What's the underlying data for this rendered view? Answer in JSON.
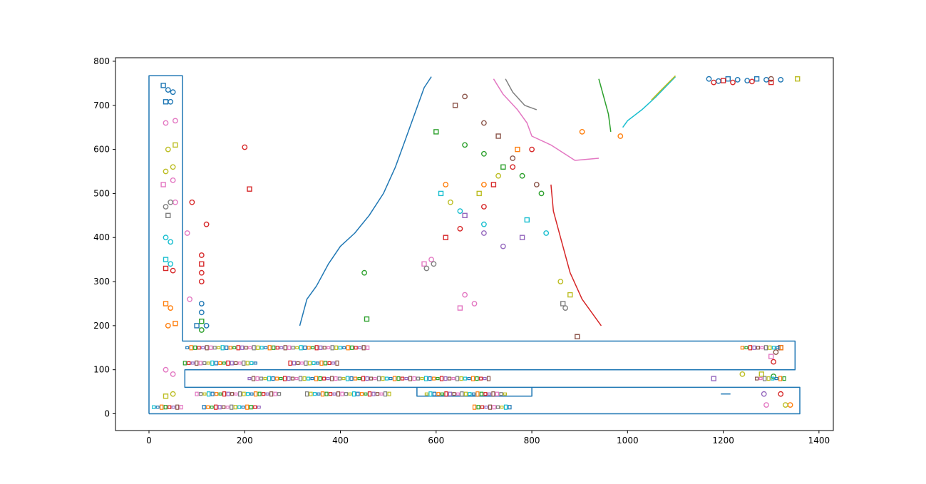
{
  "chart_data": {
    "type": "line",
    "title": "",
    "xlabel": "",
    "ylabel": "",
    "xlim": [
      -70,
      1430
    ],
    "ylim": [
      -38,
      808
    ],
    "grid": false,
    "x_ticks": [
      "0",
      "200",
      "400",
      "600",
      "800",
      "1000",
      "1200",
      "1400"
    ],
    "y_ticks": [
      "0",
      "100",
      "200",
      "300",
      "400",
      "500",
      "600",
      "700",
      "800"
    ],
    "x_tick_values": [
      0,
      200,
      400,
      600,
      800,
      1000,
      1200,
      1400
    ],
    "y_tick_values": [
      0,
      100,
      200,
      300,
      400,
      500,
      600,
      700,
      800
    ],
    "palette": [
      "#1f77b4",
      "#ff7f0e",
      "#2ca02c",
      "#d62728",
      "#9467bd",
      "#8c564b",
      "#e377c2",
      "#7f7f7f",
      "#bcbd22",
      "#17becf"
    ],
    "series": [
      {
        "color": "#1f77b4",
        "values": [
          [
            0,
            0
          ],
          [
            0,
            767
          ],
          [
            70,
            767
          ],
          [
            70,
            165
          ],
          [
            1350,
            165
          ],
          [
            1350,
            100
          ],
          [
            75,
            100
          ],
          [
            75,
            60
          ],
          [
            1360,
            60
          ],
          [
            1360,
            0
          ],
          [
            0,
            0
          ]
        ]
      },
      {
        "color": "#1f77b4",
        "values": [
          [
            560,
            60
          ],
          [
            560,
            40
          ],
          [
            800,
            40
          ],
          [
            800,
            60
          ]
        ]
      },
      {
        "color": "#1f77b4",
        "values": [
          [
            315,
            200
          ],
          [
            330,
            260
          ],
          [
            350,
            290
          ],
          [
            375,
            340
          ],
          [
            400,
            380
          ],
          [
            430,
            410
          ],
          [
            460,
            450
          ],
          [
            490,
            500
          ],
          [
            515,
            560
          ],
          [
            535,
            620
          ],
          [
            555,
            680
          ],
          [
            575,
            740
          ],
          [
            590,
            765
          ]
        ]
      },
      {
        "color": "#17becf",
        "values": [
          [
            1100,
            765
          ],
          [
            1060,
            720
          ],
          [
            1030,
            690
          ],
          [
            1000,
            665
          ],
          [
            990,
            650
          ]
        ]
      },
      {
        "color": "#bcbd22",
        "values": [
          [
            1100,
            767
          ],
          [
            1075,
            740
          ],
          [
            1050,
            712
          ]
        ]
      },
      {
        "color": "#e377c2",
        "values": [
          [
            720,
            760
          ],
          [
            740,
            725
          ],
          [
            770,
            690
          ],
          [
            790,
            660
          ],
          [
            800,
            630
          ],
          [
            840,
            610
          ],
          [
            890,
            575
          ],
          [
            940,
            580
          ]
        ]
      },
      {
        "color": "#7f7f7f",
        "values": [
          [
            745,
            760
          ],
          [
            760,
            730
          ],
          [
            785,
            700
          ],
          [
            810,
            690
          ]
        ]
      },
      {
        "color": "#d62728",
        "values": [
          [
            840,
            520
          ],
          [
            845,
            460
          ],
          [
            860,
            400
          ],
          [
            880,
            320
          ],
          [
            905,
            260
          ],
          [
            945,
            200
          ]
        ]
      },
      {
        "color": "#2ca02c",
        "values": [
          [
            940,
            760
          ],
          [
            950,
            720
          ],
          [
            960,
            680
          ],
          [
            965,
            640
          ]
        ]
      },
      {
        "color": "#1f77b4",
        "values": [
          [
            1195,
            45
          ],
          [
            1215,
            45
          ]
        ]
      }
    ],
    "markers": [
      {
        "color": "#1f77b4",
        "values": [
          [
            30,
            745
          ],
          [
            40,
            735
          ],
          [
            50,
            730
          ],
          [
            35,
            708
          ],
          [
            45,
            708
          ]
        ]
      },
      {
        "color": "#e377c2",
        "values": [
          [
            35,
            660
          ],
          [
            55,
            665
          ],
          [
            30,
            520
          ],
          [
            50,
            530
          ],
          [
            55,
            480
          ]
        ]
      },
      {
        "color": "#bcbd22",
        "values": [
          [
            40,
            600
          ],
          [
            55,
            610
          ],
          [
            35,
            550
          ],
          [
            50,
            560
          ]
        ]
      },
      {
        "color": "#7f7f7f",
        "values": [
          [
            35,
            470
          ],
          [
            45,
            480
          ],
          [
            40,
            450
          ]
        ]
      },
      {
        "color": "#17becf",
        "values": [
          [
            35,
            400
          ],
          [
            45,
            390
          ],
          [
            35,
            350
          ],
          [
            45,
            340
          ]
        ]
      },
      {
        "color": "#d62728",
        "values": [
          [
            35,
            330
          ],
          [
            50,
            325
          ],
          [
            110,
            360
          ],
          [
            110,
            340
          ],
          [
            110,
            320
          ],
          [
            110,
            300
          ]
        ]
      },
      {
        "color": "#ff7f0e",
        "values": [
          [
            35,
            250
          ],
          [
            45,
            240
          ],
          [
            40,
            200
          ],
          [
            55,
            205
          ],
          [
            1340,
            20
          ]
        ]
      },
      {
        "color": "#e377c2",
        "values": [
          [
            35,
            100
          ],
          [
            50,
            90
          ],
          [
            1300,
            130
          ],
          [
            1290,
            20
          ]
        ]
      },
      {
        "color": "#bcbd22",
        "values": [
          [
            35,
            40
          ],
          [
            50,
            45
          ],
          [
            1330,
            20
          ],
          [
            1280,
            90
          ],
          [
            1240,
            90
          ]
        ]
      },
      {
        "color": "#1f77b4",
        "values": [
          [
            110,
            250
          ],
          [
            110,
            230
          ],
          [
            100,
            200
          ],
          [
            120,
            200
          ]
        ]
      },
      {
        "color": "#2ca02c",
        "values": [
          [
            110,
            210
          ],
          [
            110,
            190
          ],
          [
            1305,
            85
          ]
        ]
      },
      {
        "color": "#9467bd",
        "values": [
          [
            1180,
            80
          ],
          [
            1285,
            45
          ]
        ]
      },
      {
        "color": "#d62728",
        "values": [
          [
            1320,
            45
          ],
          [
            1305,
            118
          ]
        ]
      },
      {
        "color": "#8c564b",
        "values": [
          [
            1310,
            140
          ],
          [
            1320,
            150
          ]
        ]
      },
      {
        "color": "#e377c2",
        "values": [
          [
            650,
            240
          ],
          [
            660,
            270
          ],
          [
            680,
            250
          ],
          [
            575,
            340
          ],
          [
            590,
            350
          ]
        ]
      },
      {
        "color": "#7f7f7f",
        "values": [
          [
            580,
            330
          ],
          [
            595,
            340
          ],
          [
            865,
            250
          ],
          [
            870,
            240
          ]
        ]
      },
      {
        "color": "#d62728",
        "values": [
          [
            620,
            400
          ],
          [
            650,
            420
          ],
          [
            700,
            470
          ],
          [
            720,
            520
          ],
          [
            760,
            560
          ],
          [
            800,
            600
          ]
        ]
      },
      {
        "color": "#8c564b",
        "values": [
          [
            640,
            700
          ],
          [
            660,
            720
          ],
          [
            700,
            660
          ],
          [
            730,
            630
          ],
          [
            760,
            580
          ],
          [
            810,
            520
          ]
        ]
      },
      {
        "color": "#2ca02c",
        "values": [
          [
            600,
            640
          ],
          [
            660,
            610
          ],
          [
            700,
            590
          ],
          [
            740,
            560
          ],
          [
            780,
            540
          ],
          [
            820,
            500
          ]
        ]
      },
      {
        "color": "#17becf",
        "values": [
          [
            610,
            500
          ],
          [
            650,
            460
          ],
          [
            700,
            430
          ],
          [
            790,
            440
          ],
          [
            830,
            410
          ]
        ]
      },
      {
        "color": "#ff7f0e",
        "values": [
          [
            620,
            520
          ],
          [
            700,
            520
          ],
          [
            770,
            600
          ],
          [
            905,
            640
          ],
          [
            985,
            630
          ]
        ]
      },
      {
        "color": "#bcbd22",
        "values": [
          [
            630,
            480
          ],
          [
            690,
            500
          ],
          [
            730,
            540
          ],
          [
            860,
            300
          ],
          [
            880,
            270
          ]
        ]
      },
      {
        "color": "#9467bd",
        "values": [
          [
            660,
            450
          ],
          [
            700,
            410
          ],
          [
            740,
            380
          ],
          [
            780,
            400
          ]
        ]
      },
      {
        "color": "#d62728",
        "values": [
          [
            200,
            605
          ],
          [
            210,
            510
          ],
          [
            120,
            430
          ],
          [
            90,
            480
          ]
        ]
      },
      {
        "color": "#e377c2",
        "values": [
          [
            85,
            260
          ],
          [
            80,
            410
          ]
        ]
      },
      {
        "color": "#2ca02c",
        "values": [
          [
            450,
            320
          ],
          [
            455,
            215
          ]
        ]
      },
      {
        "color": "#8c564b",
        "values": [
          [
            895,
            175
          ],
          [
            1300,
            760
          ]
        ]
      },
      {
        "color": "#1f77b4",
        "values": [
          [
            1170,
            760
          ],
          [
            1190,
            755
          ],
          [
            1210,
            760
          ],
          [
            1230,
            758
          ],
          [
            1250,
            756
          ],
          [
            1270,
            760
          ],
          [
            1290,
            758
          ],
          [
            1320,
            758
          ]
        ]
      },
      {
        "color": "#d62728",
        "values": [
          [
            1180,
            752
          ],
          [
            1200,
            756
          ],
          [
            1220,
            752
          ],
          [
            1260,
            754
          ],
          [
            1300,
            752
          ]
        ]
      },
      {
        "color": "#bcbd22",
        "values": [
          [
            1355,
            760
          ]
        ]
      }
    ],
    "text_strips": [
      {
        "color_cycle": true,
        "y": 150,
        "x0": 80,
        "x1": 460
      },
      {
        "color_cycle": true,
        "y": 150,
        "x0": 1240,
        "x1": 1330
      },
      {
        "color_cycle": true,
        "y": 115,
        "x0": 75,
        "x1": 230
      },
      {
        "color_cycle": true,
        "y": 115,
        "x0": 295,
        "x1": 400
      },
      {
        "color_cycle": true,
        "y": 80,
        "x0": 210,
        "x1": 710
      },
      {
        "color_cycle": true,
        "y": 80,
        "x0": 1270,
        "x1": 1330
      },
      {
        "color_cycle": true,
        "y": 45,
        "x0": 100,
        "x1": 280
      },
      {
        "color_cycle": true,
        "y": 45,
        "x0": 330,
        "x1": 510
      },
      {
        "color_cycle": true,
        "y": 45,
        "x0": 580,
        "x1": 745
      },
      {
        "color_cycle": true,
        "y": 15,
        "x0": 10,
        "x1": 75
      },
      {
        "color_cycle": true,
        "y": 15,
        "x0": 115,
        "x1": 230
      },
      {
        "color_cycle": true,
        "y": 15,
        "x0": 680,
        "x1": 760
      }
    ]
  }
}
